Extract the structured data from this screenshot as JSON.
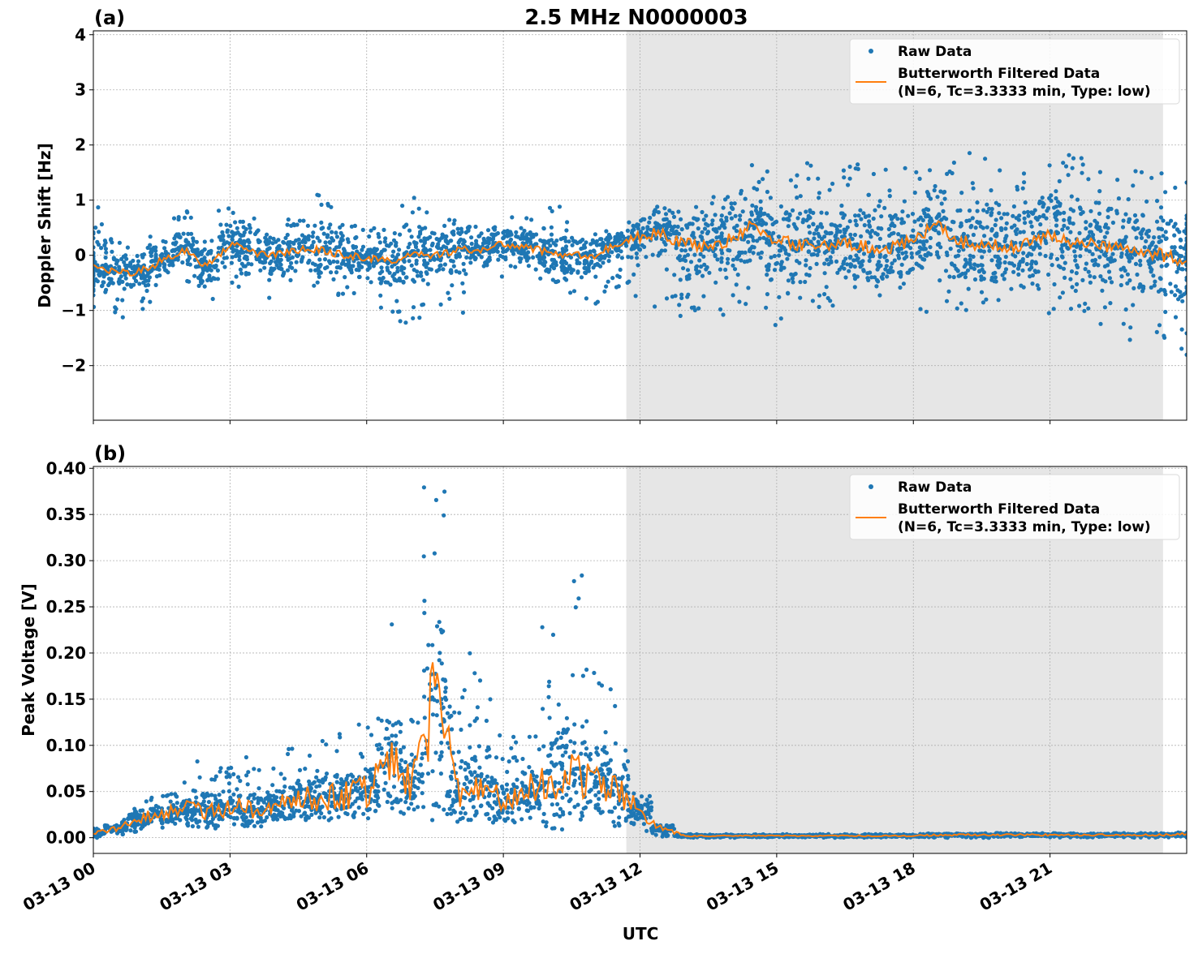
{
  "figure_title": "2.5 MHz N0000003",
  "chart_data": [
    {
      "type": "scatter",
      "panel_label": "(a)",
      "title": "2.5 MHz N0000003",
      "xlabel": "",
      "ylabel": "Doppler Shift [Hz]",
      "xlim_hours": [
        0,
        24
      ],
      "ylim": [
        -2.99,
        4.07
      ],
      "yticks": [
        -2,
        -1,
        0,
        1,
        2,
        3,
        4
      ],
      "ytick_labels": [
        "−2",
        "−1",
        "0",
        "1",
        "2",
        "3",
        "4"
      ],
      "grid": true,
      "shaded_region_hours": [
        11.7,
        23.48
      ],
      "legend": {
        "placement": "top-right",
        "entries": [
          "Raw Data",
          "Butterworth Filtered Data",
          "(N=6, Tc=3.3333 min, Type: low)"
        ]
      },
      "series": [
        {
          "name": "Raw Data",
          "color": "#1f77b4",
          "bin_hours": 0.5,
          "lo": [
            -1.3,
            -1.2,
            -1.0,
            -0.6,
            -0.5,
            -1.0,
            -0.6,
            -0.4,
            -0.9,
            -0.5,
            -0.7,
            -0.8,
            -0.5,
            -1.2,
            -1.4,
            -0.9,
            -1.3,
            -0.5,
            -0.4,
            -0.3,
            -0.6,
            -0.8,
            -1.0,
            -0.7,
            -0.9,
            -1.0,
            -1.1,
            -1.0,
            -1.1,
            -1.2,
            -1.3,
            -1.1,
            -1.0,
            -0.9,
            -1.0,
            -0.9,
            -1.0,
            -1.1,
            -1.0,
            -1.1,
            -1.1,
            -1.0,
            -1.1,
            -1.2,
            -1.3,
            -1.4,
            -1.6,
            -1.8,
            -2.0
          ],
          "hi": [
            1.0,
            0.3,
            0.2,
            0.5,
            0.8,
            0.4,
            0.9,
            0.7,
            0.6,
            0.7,
            1.1,
            0.6,
            0.5,
            0.8,
            1.2,
            0.8,
            0.7,
            0.6,
            0.7,
            0.9,
            1.0,
            0.7,
            0.5,
            0.4,
            0.6,
            0.9,
            1.0,
            1.3,
            1.5,
            1.8,
            1.9,
            1.7,
            1.6,
            1.7,
            1.8,
            1.6,
            1.6,
            1.7,
            1.9,
            1.8,
            1.7,
            1.6,
            1.8,
            1.9,
            1.8,
            1.7,
            1.6,
            1.5,
            1.4
          ]
        },
        {
          "name": "Butterworth Filtered Data",
          "color": "#ff7f0e",
          "step_hours": 0.5,
          "values": [
            -0.2,
            -0.3,
            -0.3,
            -0.1,
            0.1,
            -0.2,
            0.2,
            0.05,
            0.0,
            0.1,
            0.1,
            0.0,
            -0.05,
            -0.1,
            0.0,
            0.0,
            0.1,
            0.1,
            0.2,
            0.15,
            0.05,
            0.0,
            0.0,
            0.2,
            0.35,
            0.4,
            0.2,
            0.15,
            0.3,
            0.55,
            0.25,
            0.2,
            0.2,
            0.2,
            0.15,
            0.15,
            0.25,
            0.55,
            0.25,
            0.2,
            0.15,
            0.2,
            0.4,
            0.2,
            0.2,
            0.15,
            0.05,
            0.0,
            -0.1
          ]
        }
      ]
    },
    {
      "type": "scatter",
      "panel_label": "(b)",
      "xlabel": "UTC",
      "ylabel": "Peak Voltage [V]",
      "xlim_hours": [
        0,
        24
      ],
      "ylim": [
        -0.017,
        0.402
      ],
      "yticks": [
        0,
        0.05,
        0.1,
        0.15,
        0.2,
        0.25,
        0.3,
        0.35,
        0.4
      ],
      "ytick_labels": [
        "0.00",
        "0.05",
        "0.10",
        "0.15",
        "0.20",
        "0.25",
        "0.30",
        "0.35",
        "0.40"
      ],
      "xticks_hours": [
        0,
        3,
        6,
        9,
        12,
        15,
        18,
        21
      ],
      "xtick_labels": [
        "03-13 00",
        "03-13 03",
        "03-13 06",
        "03-13 09",
        "03-13 12",
        "03-13 15",
        "03-13 18",
        "03-13 21"
      ],
      "grid": true,
      "shaded_region_hours": [
        11.7,
        23.48
      ],
      "legend": {
        "placement": "top-right",
        "entries": [
          "Raw Data",
          "Butterworth Filtered Data",
          "(N=6, Tc=3.3333 min, Type: low)"
        ]
      },
      "series": [
        {
          "name": "Raw Data",
          "color": "#1f77b4",
          "bin_hours": 0.5,
          "lo": [
            0.0,
            0.003,
            0.005,
            0.008,
            0.01,
            0.01,
            0.012,
            0.012,
            0.012,
            0.015,
            0.015,
            0.018,
            0.02,
            0.025,
            0.02,
            0.015,
            0.02,
            0.015,
            0.015,
            0.015,
            0.015,
            0.018,
            0.015,
            0.012,
            0.005,
            0.001,
            0.0,
            0.0,
            0.0,
            0.0,
            0.0,
            0.0,
            0.0,
            0.0,
            0.0,
            0.0,
            0.0,
            0.0,
            0.0,
            0.0,
            0.0,
            0.0,
            0.0,
            0.0,
            0.0,
            0.0,
            0.0,
            0.0,
            0.0
          ],
          "hi": [
            0.01,
            0.02,
            0.04,
            0.05,
            0.06,
            0.09,
            0.08,
            0.09,
            0.08,
            0.1,
            0.11,
            0.12,
            0.13,
            0.25,
            0.14,
            0.38,
            0.17,
            0.2,
            0.12,
            0.11,
            0.24,
            0.29,
            0.19,
            0.17,
            0.06,
            0.015,
            0.004,
            0.004,
            0.004,
            0.004,
            0.004,
            0.004,
            0.004,
            0.004,
            0.004,
            0.004,
            0.004,
            0.005,
            0.005,
            0.005,
            0.005,
            0.005,
            0.005,
            0.005,
            0.005,
            0.005,
            0.005,
            0.005,
            0.006
          ]
        },
        {
          "name": "Butterworth Filtered Data",
          "color": "#ff7f0e",
          "step_hours": 0.5,
          "values": [
            0.005,
            0.01,
            0.02,
            0.025,
            0.03,
            0.03,
            0.035,
            0.03,
            0.035,
            0.04,
            0.045,
            0.045,
            0.05,
            0.08,
            0.06,
            0.15,
            0.05,
            0.06,
            0.04,
            0.05,
            0.06,
            0.07,
            0.06,
            0.05,
            0.03,
            0.01,
            0.002,
            0.002,
            0.002,
            0.002,
            0.002,
            0.002,
            0.002,
            0.002,
            0.002,
            0.002,
            0.002,
            0.003,
            0.003,
            0.003,
            0.003,
            0.003,
            0.003,
            0.003,
            0.003,
            0.003,
            0.003,
            0.003,
            0.004
          ]
        }
      ]
    }
  ]
}
